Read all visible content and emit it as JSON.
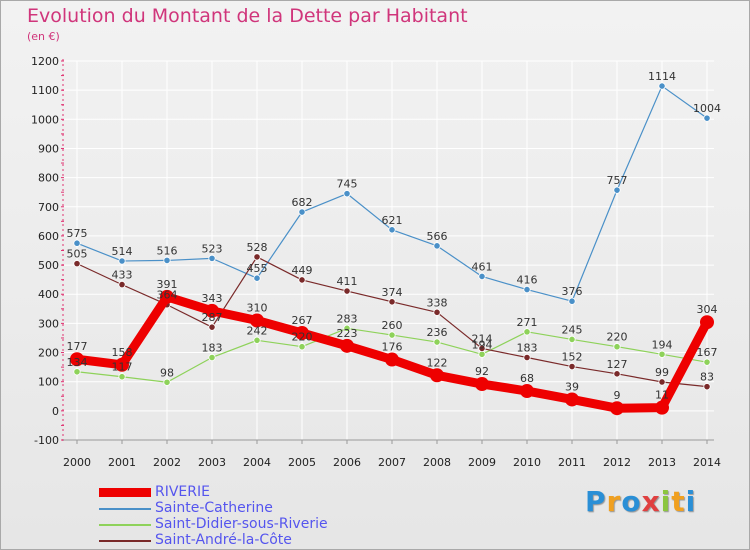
{
  "title": "Evolution du Montant de la Dette par Habitant",
  "subtitle": "(en €)",
  "logo": {
    "text": "Proxiti",
    "colors": [
      "#2a8fd6",
      "#f0a020",
      "#2a8fd6",
      "#e04040",
      "#8cc63f",
      "#f0a020",
      "#2a8fd6"
    ]
  },
  "chart_data": {
    "type": "line",
    "title": "Evolution du Montant de la Dette par Habitant",
    "ylabel": "(en €)",
    "ylim": [
      -100,
      1200
    ],
    "yticks": [
      -100,
      0,
      100,
      200,
      300,
      400,
      500,
      600,
      700,
      800,
      900,
      1000,
      1100,
      1200
    ],
    "x": [
      "2000",
      "2001",
      "2002",
      "2003",
      "2004",
      "2005",
      "2006",
      "2007",
      "2008",
      "2009",
      "2010",
      "2011",
      "2012",
      "2013",
      "2014"
    ],
    "grid": true,
    "legend_position": "bottom-left",
    "series": [
      {
        "name": "Sainte-Catherine",
        "color": "#4a90c8",
        "width": 1.2,
        "marker": 3.2,
        "values": [
          575,
          514,
          516,
          523,
          455,
          682,
          745,
          621,
          566,
          461,
          416,
          376,
          757,
          1114,
          1004
        ],
        "labels": [
          "575",
          "514",
          "516",
          "523",
          "455",
          "682",
          "745",
          "621",
          "566",
          "461",
          "416",
          "376",
          "757",
          "1114",
          "1004"
        ]
      },
      {
        "name": "Saint-Didier-sous-Riverie",
        "color": "#8ed25a",
        "width": 1.2,
        "marker": 3.2,
        "values": [
          134,
          117,
          98,
          183,
          242,
          220,
          283,
          260,
          236,
          194,
          271,
          245,
          220,
          194,
          167
        ],
        "labels": [
          "134",
          "117",
          "98",
          "183",
          "242",
          "220",
          "283",
          "260",
          "236",
          "194",
          "271",
          "245",
          "220",
          "194",
          "167"
        ]
      },
      {
        "name": "Saint-André-la-Côte",
        "color": "#7a2a2a",
        "width": 1.2,
        "marker": 3.2,
        "values": [
          505,
          433,
          364,
          287,
          528,
          449,
          411,
          374,
          338,
          214,
          183,
          152,
          127,
          99,
          83
        ],
        "labels": [
          "505",
          "433",
          "364",
          "287",
          "528",
          "449",
          "411",
          "374",
          "338",
          "214",
          "183",
          "152",
          "127",
          "99",
          "83"
        ]
      },
      {
        "name": "RIVERIE",
        "color": "#ee0000",
        "width": 9,
        "marker": 7,
        "values": [
          177,
          158,
          391,
          343,
          310,
          267,
          223,
          176,
          122,
          92,
          68,
          39,
          9,
          11,
          304
        ],
        "labels": [
          "177",
          "158",
          "391",
          "343",
          "310",
          "267",
          "223",
          "176",
          "122",
          "92",
          "68",
          "39",
          "9",
          "11",
          "304"
        ]
      }
    ]
  },
  "legend": [
    {
      "name": "RIVERIE",
      "color": "#ee0000",
      "thickness": 9
    },
    {
      "name": "Sainte-Catherine",
      "color": "#4a90c8",
      "thickness": 1.5
    },
    {
      "name": "Saint-Didier-sous-Riverie",
      "color": "#8ed25a",
      "thickness": 1.5
    },
    {
      "name": "Saint-André-la-Côte",
      "color": "#7a2a2a",
      "thickness": 1.5
    }
  ]
}
